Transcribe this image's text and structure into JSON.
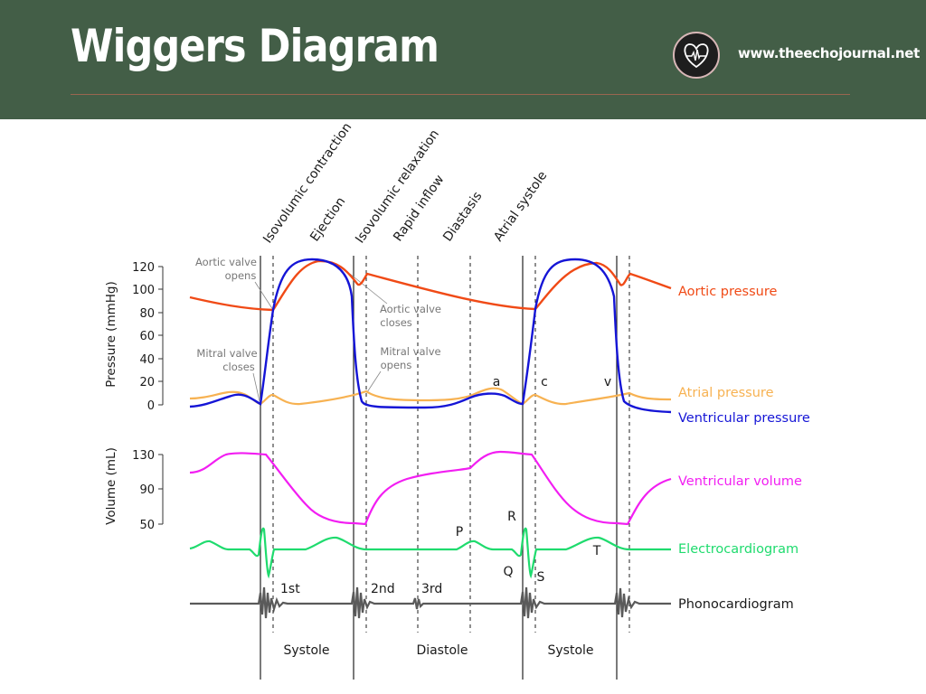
{
  "header": {
    "title": "Wiggers Diagram",
    "website": "www.theechojournal.net",
    "background_color": "#435e47",
    "logo_icon": "heart-ecg-logo-icon"
  },
  "diagram": {
    "phases": [
      "Isovolumic contraction",
      "Ejection",
      "Isovolumic relaxation",
      "Rapid inflow",
      "Diastasis",
      "Atrial systole"
    ],
    "pressure_axis": {
      "label": "Pressure (mmHg)",
      "ticks": [
        "120",
        "100",
        "80",
        "60",
        "40",
        "20",
        "0"
      ]
    },
    "volume_axis": {
      "label": "Volume (mL)",
      "ticks": [
        "130",
        "90",
        "50"
      ]
    },
    "annotations": {
      "aortic_opens": [
        "Aortic valve",
        "opens"
      ],
      "aortic_closes": [
        "Aortic valve",
        "closes"
      ],
      "mitral_closes": [
        "Mitral valve",
        "closes"
      ],
      "mitral_opens": [
        "Mitral valve",
        "opens"
      ]
    },
    "waves": {
      "a": "a",
      "c": "c",
      "v": "v",
      "P": "P",
      "Q": "Q",
      "R": "R",
      "S": "S",
      "T": "T"
    },
    "heart_sounds": [
      "1st",
      "2nd",
      "3rd"
    ],
    "periods": [
      "Systole",
      "Diastole",
      "Systole"
    ],
    "curves": [
      {
        "label": "Aortic pressure",
        "color": "#f04a16"
      },
      {
        "label": "Atrial pressure",
        "color": "#f7b252"
      },
      {
        "label": "Ventricular pressure",
        "color": "#1515d6"
      },
      {
        "label": "Ventricular volume",
        "color": "#f21ef2"
      },
      {
        "label": "Electrocardiogram",
        "color": "#1fdb6e"
      },
      {
        "label": "Phonocardiogram",
        "color": "#5a5a5a"
      }
    ]
  }
}
